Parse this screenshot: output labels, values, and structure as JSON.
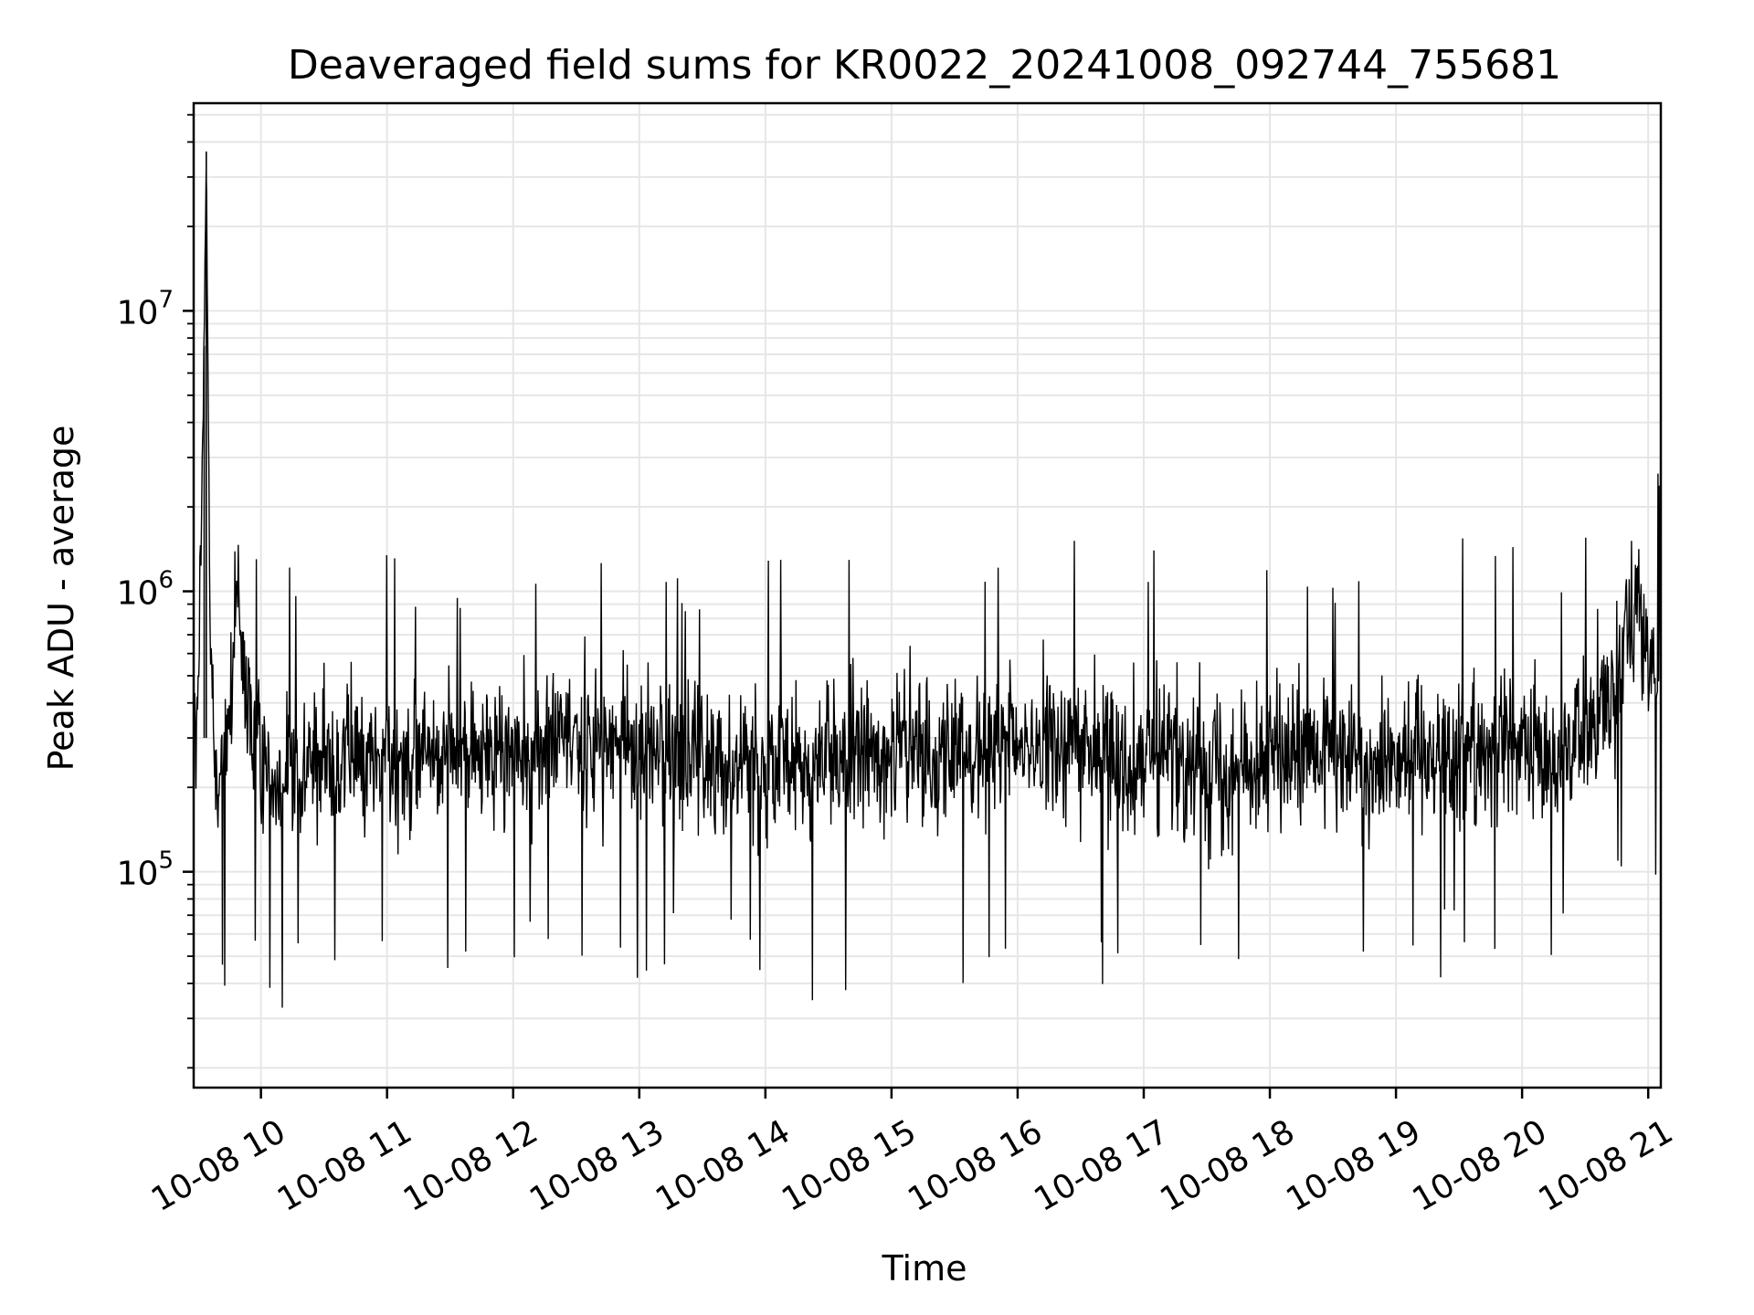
{
  "chart_data": {
    "type": "line",
    "title": "Deaveraged field sums for KR0022_20241008_092744_755681",
    "xlabel": "Time",
    "ylabel": "Peak ADU - average",
    "yscale": "log",
    "ylim": [
      17000,
      55000000
    ],
    "xlim": [
      "2024-10-08 09:28",
      "2024-10-08 21:06"
    ],
    "grid": true,
    "line_color": "#000000",
    "grid_color": "#e6e6e6",
    "xticks": [
      {
        "value": "2024-10-08 10:00",
        "label": "10-08 10"
      },
      {
        "value": "2024-10-08 11:00",
        "label": "10-08 11"
      },
      {
        "value": "2024-10-08 12:00",
        "label": "10-08 12"
      },
      {
        "value": "2024-10-08 13:00",
        "label": "10-08 13"
      },
      {
        "value": "2024-10-08 14:00",
        "label": "10-08 14"
      },
      {
        "value": "2024-10-08 15:00",
        "label": "10-08 15"
      },
      {
        "value": "2024-10-08 16:00",
        "label": "10-08 16"
      },
      {
        "value": "2024-10-08 17:00",
        "label": "10-08 17"
      },
      {
        "value": "2024-10-08 18:00",
        "label": "10-08 18"
      },
      {
        "value": "2024-10-08 19:00",
        "label": "10-08 19"
      },
      {
        "value": "2024-10-08 20:00",
        "label": "10-08 20"
      },
      {
        "value": "2024-10-08 21:00",
        "label": "10-08 21"
      }
    ],
    "yticks": [
      {
        "value": 100000,
        "base": "10",
        "exp": "5"
      },
      {
        "value": 1000000,
        "base": "10",
        "exp": "6"
      },
      {
        "value": 10000000,
        "base": "10",
        "exp": "7"
      }
    ],
    "series": [
      {
        "x": [
          "2024-10-08 09:28",
          "2024-10-08 09:30",
          "2024-10-08 09:33",
          "2024-10-08 09:34",
          "2024-10-08 09:36",
          "2024-10-08 09:38",
          "2024-10-08 09:40",
          "2024-10-08 09:43",
          "2024-10-08 09:46",
          "2024-10-08 09:48",
          "2024-10-08 09:50",
          "2024-10-08 09:52",
          "2024-10-08 09:55",
          "2024-10-08 10:00",
          "2024-10-08 10:05",
          "2024-10-08 10:10",
          "2024-10-08 10:15",
          "2024-10-08 10:20",
          "2024-10-08 10:30",
          "2024-10-08 10:40",
          "2024-10-08 10:50",
          "2024-10-08 11:00",
          "2024-10-08 11:10",
          "2024-10-08 11:20",
          "2024-10-08 11:30",
          "2024-10-08 11:45",
          "2024-10-08 11:58",
          "2024-10-08 12:05",
          "2024-10-08 12:15",
          "2024-10-08 12:20",
          "2024-10-08 12:30",
          "2024-10-08 12:45",
          "2024-10-08 13:00",
          "2024-10-08 13:15",
          "2024-10-08 13:30",
          "2024-10-08 13:45",
          "2024-10-08 14:00",
          "2024-10-08 14:15",
          "2024-10-08 14:30",
          "2024-10-08 14:45",
          "2024-10-08 15:00",
          "2024-10-08 15:15",
          "2024-10-08 15:30",
          "2024-10-08 15:45",
          "2024-10-08 16:00",
          "2024-10-08 16:15",
          "2024-10-08 16:25",
          "2024-10-08 16:45",
          "2024-10-08 17:00",
          "2024-10-08 17:15",
          "2024-10-08 17:30",
          "2024-10-08 17:45",
          "2024-10-08 18:00",
          "2024-10-08 18:10",
          "2024-10-08 18:30",
          "2024-10-08 18:45",
          "2024-10-08 19:00",
          "2024-10-08 19:15",
          "2024-10-08 19:30",
          "2024-10-08 19:33",
          "2024-10-08 19:45",
          "2024-10-08 20:00",
          "2024-10-08 20:15",
          "2024-10-08 20:30",
          "2024-10-08 20:40",
          "2024-10-08 20:45",
          "2024-10-08 20:50",
          "2024-10-08 20:55",
          "2024-10-08 21:00",
          "2024-10-08 21:03",
          "2024-10-08 21:05"
        ],
        "y": [
          300000,
          300000,
          7500000,
          37000000,
          600000,
          250000,
          200000,
          280000,
          400000,
          1000000,
          700000,
          450000,
          350000,
          250000,
          230000,
          220000,
          230000,
          240000,
          250000,
          260000,
          250000,
          250000,
          260000,
          270000,
          280000,
          260000,
          270000,
          260000,
          280000,
          290000,
          300000,
          290000,
          280000,
          260000,
          250000,
          250000,
          240000,
          240000,
          250000,
          260000,
          270000,
          270000,
          260000,
          270000,
          280000,
          280000,
          290000,
          270000,
          260000,
          250000,
          240000,
          250000,
          260000,
          250000,
          260000,
          240000,
          270000,
          280000,
          270000,
          280000,
          280000,
          270000,
          260000,
          300000,
          400000,
          500000,
          800000,
          1000000,
          500000,
          550000,
          600000
        ]
      }
    ],
    "noise_seed": 12345
  }
}
